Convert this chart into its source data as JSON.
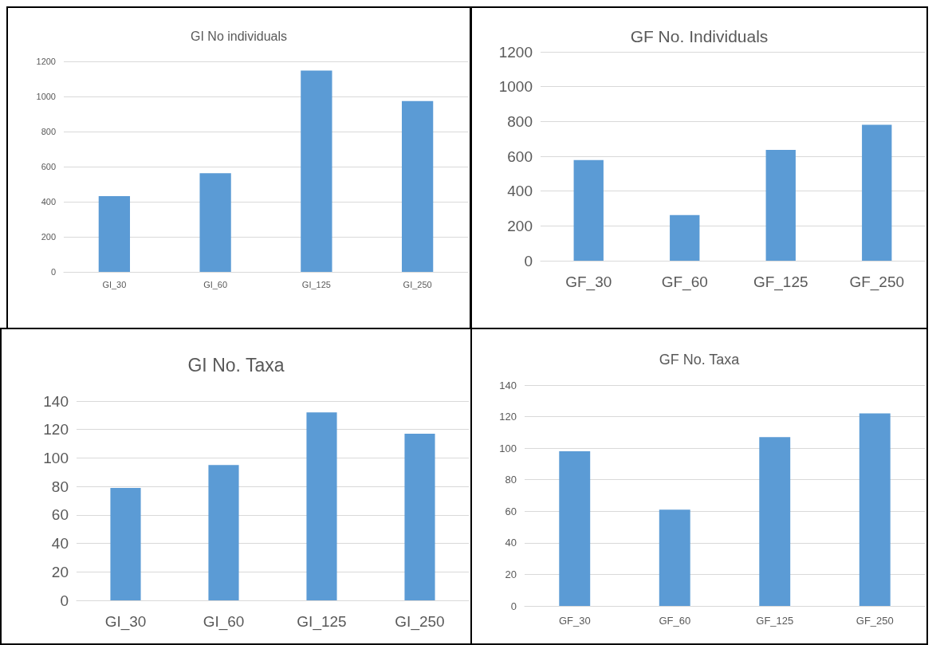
{
  "chart_data": [
    {
      "type": "bar",
      "title": "GI No individuals",
      "categories": [
        "GI_30",
        "GI_60",
        "GI_125",
        "GI_250"
      ],
      "values": [
        432,
        563,
        1148,
        974
      ],
      "color": "#5b9bd5",
      "ylim": [
        0,
        1200
      ],
      "yticks": [
        0,
        200,
        400,
        600,
        800,
        1000,
        1200
      ],
      "grid": "y"
    },
    {
      "type": "bar",
      "title": "GF No. Individuals",
      "categories": [
        "GF_30",
        "GF_60",
        "GF_125",
        "GF_250"
      ],
      "values": [
        578,
        262,
        637,
        781
      ],
      "color": "#5b9bd5",
      "ylim": [
        0,
        1200
      ],
      "yticks": [
        0,
        200,
        400,
        600,
        800,
        1000,
        1200
      ],
      "grid": "y"
    },
    {
      "type": "bar",
      "title": "GI No. Taxa",
      "categories": [
        "GI_30",
        "GI_60",
        "GI_125",
        "GI_250"
      ],
      "values": [
        79,
        95,
        132,
        117
      ],
      "color": "#5b9bd5",
      "ylim": [
        0,
        140
      ],
      "yticks": [
        0,
        20,
        40,
        60,
        80,
        100,
        120,
        140
      ],
      "grid": "y"
    },
    {
      "type": "bar",
      "title": "GF No. Taxa",
      "categories": [
        "GF_30",
        "GF_60",
        "GF_125",
        "GF_250"
      ],
      "values": [
        98,
        61,
        107,
        122
      ],
      "color": "#5b9bd5",
      "ylim": [
        0,
        140
      ],
      "yticks": [
        0,
        20,
        40,
        60,
        80,
        100,
        120,
        140
      ],
      "grid": "y"
    }
  ]
}
